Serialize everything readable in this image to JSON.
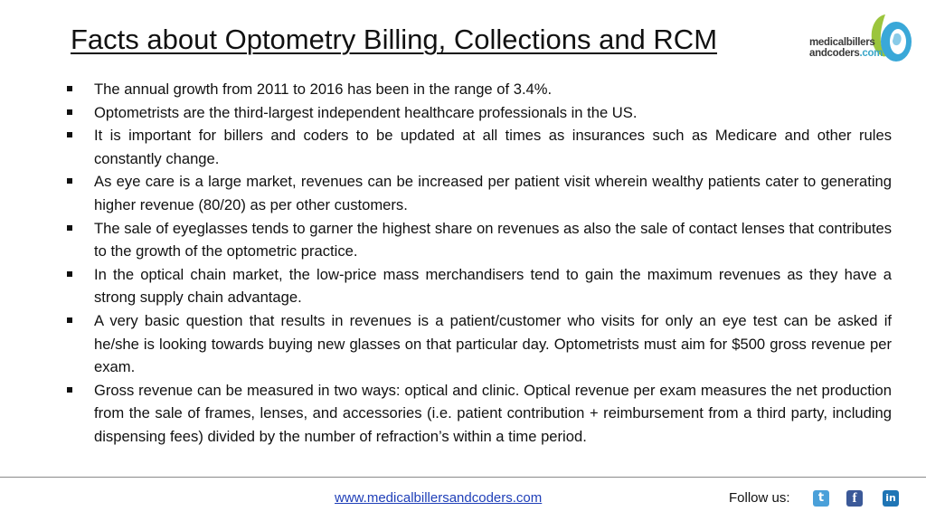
{
  "title": "Facts about Optometry Billing, Collections and RCM",
  "logo": {
    "line1": "medicalbillers",
    "line2_main": "andcoders",
    "line2_suffix": ".com",
    "colors": {
      "green": "#9bc53d",
      "blue": "#3aa8d8",
      "text": "#3a3a3a"
    }
  },
  "facts": [
    "The annual growth from 2011 to 2016 has been in the range of 3.4%.",
    "Optometrists are the third-largest independent healthcare professionals in the US.",
    "It is important for billers and coders to be updated at all times as insurances such as Medicare and other rules constantly change.",
    "As eye care is a large market, revenues can be increased per patient visit wherein wealthy patients cater to generating higher revenue (80/20) as per other customers.",
    "The sale of eyeglasses tends to garner the highest share on revenues as also the sale of contact lenses that contributes to the growth of the optometric practice.",
    "In the optical chain market, the low-price mass merchandisers tend to gain the maximum revenues as they have a strong supply chain advantage.",
    "A very basic question that results in revenues is a patient/customer who visits for only an eye test can be asked if he/she is looking towards buying new glasses on that particular day. Optometrists must aim for $500 gross revenue per exam.",
    "Gross revenue can be measured in two ways: optical and clinic. Optical revenue per exam measures the net production from the sale of frames, lenses, and accessories (i.e. patient contribution + reimbursement from a third party, including dispensing fees) divided by the number of refraction’s within a time period."
  ],
  "footer": {
    "website": "www.medicalbillersandcoders.com",
    "follow_label": "Follow us:",
    "social_icons": [
      "twitter-icon",
      "facebook-icon",
      "linkedin-icon"
    ]
  }
}
